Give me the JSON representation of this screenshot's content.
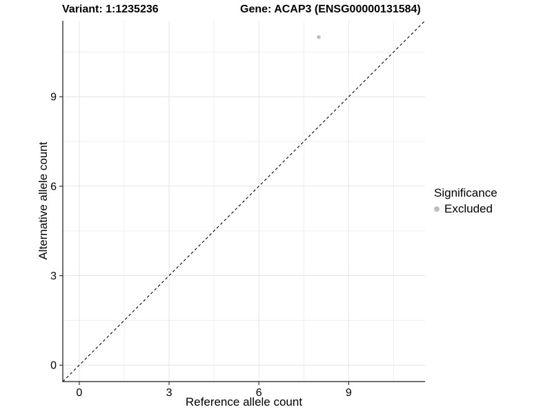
{
  "titles": {
    "variant": "Variant: 1:1235236",
    "gene": "Gene: ACAP3 (ENSG00000131584)"
  },
  "axes": {
    "x": {
      "label": "Reference allele count",
      "ticks": [
        "0",
        "3",
        "6",
        "9"
      ]
    },
    "y": {
      "label": "Alternative allele count",
      "ticks": [
        "0",
        "3",
        "6",
        "9"
      ]
    }
  },
  "legend": {
    "title": "Significance",
    "items": [
      {
        "label": "Excluded",
        "marker": "circle-icon",
        "color": "#bebebe"
      }
    ]
  },
  "colors": {
    "background": "#ffffff",
    "grid_major": "#e4e4e4",
    "grid_minor": "#efefef",
    "axis_line": "#404040",
    "tick_mark": "#333333",
    "reference_line": "#000000",
    "text": "#000000"
  },
  "chart_data": {
    "type": "scatter",
    "title_left": "Variant: 1:1235236",
    "title_right": "Gene: ACAP3 (ENSG00000131584)",
    "xlabel": "Reference allele count",
    "ylabel": "Alternative allele count",
    "xlim": [
      -0.55,
      11.55
    ],
    "ylim": [
      -0.55,
      11.55
    ],
    "x_major_ticks": [
      0,
      3,
      6,
      9
    ],
    "y_major_ticks": [
      0,
      3,
      6,
      9
    ],
    "x_minor_gridlines": [
      1.5,
      4.5,
      7.5,
      10.5
    ],
    "y_minor_gridlines": [
      1.5,
      4.5,
      7.5,
      10.5
    ],
    "grid": true,
    "legend_position": "right",
    "series": [
      {
        "name": "Excluded",
        "color": "#bebebe",
        "points": [
          {
            "x": 8,
            "y": 11
          }
        ]
      }
    ],
    "reference_line": {
      "type": "identity",
      "style": "dashed",
      "from": [
        -0.55,
        -0.55
      ],
      "to": [
        11.55,
        11.55
      ]
    }
  }
}
